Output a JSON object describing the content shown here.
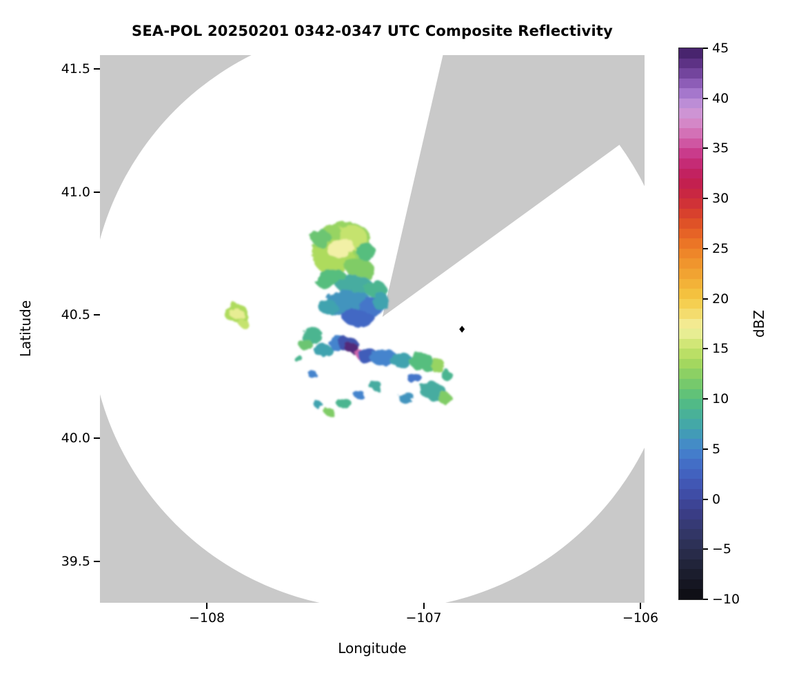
{
  "chart_data": {
    "type": "heatmap",
    "title": "SEA-POL 20250201 0342-0347 UTC Composite Reflectivity",
    "xlabel": "Longitude",
    "ylabel": "Latitude",
    "xlim": [
      -108.493,
      -105.981
    ],
    "ylim": [
      39.332,
      41.556
    ],
    "xticks": [
      -108,
      -107,
      -106
    ],
    "xtick_labels": [
      "−108",
      "−107",
      "−106"
    ],
    "yticks": [
      39.5,
      40.0,
      40.5,
      41.0,
      41.5
    ],
    "ytick_labels": [
      "39.5",
      "40.0",
      "40.5",
      "41.0",
      "41.5"
    ],
    "grid": false,
    "legend": "none",
    "colorbar": {
      "label": "dBZ",
      "min": -10,
      "max": 45,
      "ticks": [
        -10,
        -5,
        0,
        5,
        10,
        15,
        20,
        25,
        30,
        35,
        40,
        45
      ],
      "tick_labels": [
        "−10",
        "−5",
        "0",
        "5",
        "10",
        "15",
        "20",
        "25",
        "30",
        "35",
        "40",
        "45"
      ],
      "stops": [
        [
          -10,
          "#0c0c10"
        ],
        [
          -7,
          "#1e2033"
        ],
        [
          -5,
          "#2b2e50"
        ],
        [
          -3,
          "#34386d"
        ],
        [
          -1,
          "#3c3f8d"
        ],
        [
          1,
          "#4052ae"
        ],
        [
          3,
          "#4267c4"
        ],
        [
          5,
          "#4584cd"
        ],
        [
          7,
          "#41a3af"
        ],
        [
          9,
          "#4bb590"
        ],
        [
          10,
          "#57be7e"
        ],
        [
          12,
          "#80cc66"
        ],
        [
          14,
          "#aedb5d"
        ],
        [
          16,
          "#dcea7f"
        ],
        [
          17,
          "#f2f0a6"
        ],
        [
          18,
          "#f4e37c"
        ],
        [
          20,
          "#f5c843"
        ],
        [
          22,
          "#f2aa34"
        ],
        [
          24,
          "#ef8e2a"
        ],
        [
          26,
          "#e96c25"
        ],
        [
          28,
          "#dc4928"
        ],
        [
          30,
          "#cc2a3c"
        ],
        [
          32,
          "#c01d55"
        ],
        [
          34,
          "#c6307f"
        ],
        [
          35,
          "#cc4596"
        ],
        [
          36,
          "#d266ad"
        ],
        [
          38,
          "#d592cf"
        ],
        [
          39,
          "#c795d8"
        ],
        [
          40,
          "#b084d3"
        ],
        [
          41,
          "#9a6ac5"
        ],
        [
          42,
          "#7f4fa9"
        ],
        [
          43,
          "#673a90"
        ],
        [
          44,
          "#522a7a"
        ],
        [
          45,
          "#3e1d62"
        ]
      ]
    },
    "radar": {
      "center": {
        "lon": -107.19,
        "lat": 40.493
      },
      "range_lon_deg": 1.351,
      "blocked_sector_azimuth_deg": [
        13,
        54
      ],
      "nodata_color": "#c9c9c9",
      "coverage_color": "#ffffff"
    },
    "station_marker": {
      "lon": -106.823,
      "lat": 40.443,
      "shape": "diamond",
      "color": "#000000"
    },
    "echo_cells_format": [
      "lon",
      "lat",
      "rx_deg",
      "ry_deg",
      "dbz",
      "rotation_deg"
    ],
    "echo_cells": [
      [
        -107.374,
        40.795,
        0.134,
        0.078,
        13,
        -10
      ],
      [
        -107.418,
        40.739,
        0.095,
        0.073,
        14,
        0
      ],
      [
        -107.326,
        40.815,
        0.07,
        0.05,
        15,
        15
      ],
      [
        -107.383,
        40.773,
        0.064,
        0.039,
        17,
        -15
      ],
      [
        -107.294,
        40.689,
        0.07,
        0.045,
        12,
        20
      ],
      [
        -107.475,
        40.815,
        0.045,
        0.034,
        11,
        0
      ],
      [
        -107.269,
        40.759,
        0.045,
        0.034,
        10,
        0
      ],
      [
        -107.428,
        40.647,
        0.076,
        0.039,
        10,
        -5
      ],
      [
        -107.316,
        40.619,
        0.083,
        0.045,
        8,
        5
      ],
      [
        -107.221,
        40.605,
        0.051,
        0.034,
        9,
        0
      ],
      [
        -107.348,
        40.549,
        0.108,
        0.05,
        6,
        -5
      ],
      [
        -107.237,
        40.535,
        0.064,
        0.039,
        4,
        0
      ],
      [
        -107.444,
        40.535,
        0.045,
        0.028,
        7,
        0
      ],
      [
        -107.3,
        40.488,
        0.076,
        0.034,
        3,
        5
      ],
      [
        -107.196,
        40.555,
        0.035,
        0.039,
        7,
        0
      ],
      [
        -107.517,
        40.418,
        0.051,
        0.034,
        9,
        0
      ],
      [
        -107.545,
        40.381,
        0.032,
        0.022,
        11,
        0
      ],
      [
        -107.466,
        40.359,
        0.041,
        0.028,
        7,
        0
      ],
      [
        -107.396,
        40.387,
        0.045,
        0.028,
        5,
        0
      ],
      [
        -107.348,
        40.381,
        0.045,
        0.031,
        1,
        0
      ],
      [
        -107.332,
        40.367,
        0.029,
        0.022,
        44,
        0
      ],
      [
        -107.3,
        40.345,
        0.022,
        0.017,
        36,
        0
      ],
      [
        -107.259,
        40.336,
        0.051,
        0.028,
        2,
        0
      ],
      [
        -107.18,
        40.325,
        0.064,
        0.034,
        5,
        0
      ],
      [
        -107.103,
        40.317,
        0.051,
        0.031,
        7,
        0
      ],
      [
        -107.008,
        40.311,
        0.057,
        0.034,
        10,
        0
      ],
      [
        -106.932,
        40.292,
        0.038,
        0.025,
        13,
        0
      ],
      [
        -106.893,
        40.255,
        0.025,
        0.02,
        9,
        0
      ],
      [
        -107.046,
        40.247,
        0.032,
        0.022,
        4,
        0
      ],
      [
        -106.957,
        40.191,
        0.07,
        0.036,
        8,
        15
      ],
      [
        -106.903,
        40.163,
        0.032,
        0.022,
        12,
        0
      ],
      [
        -107.078,
        40.163,
        0.038,
        0.022,
        6,
        0
      ],
      [
        -107.221,
        40.213,
        0.029,
        0.02,
        8,
        0
      ],
      [
        -107.3,
        40.18,
        0.025,
        0.017,
        5,
        0
      ],
      [
        -107.37,
        40.144,
        0.035,
        0.02,
        9,
        0
      ],
      [
        -107.434,
        40.107,
        0.022,
        0.017,
        12,
        0
      ],
      [
        -107.485,
        40.135,
        0.019,
        0.014,
        7,
        0
      ],
      [
        -107.507,
        40.255,
        0.022,
        0.014,
        5,
        0
      ],
      [
        -107.58,
        40.325,
        0.019,
        0.014,
        9,
        0
      ],
      [
        -107.863,
        40.507,
        0.054,
        0.039,
        14,
        0
      ],
      [
        -107.863,
        40.507,
        0.032,
        0.022,
        16.5,
        0
      ],
      [
        -107.835,
        40.471,
        0.022,
        0.017,
        15,
        0
      ]
    ]
  }
}
